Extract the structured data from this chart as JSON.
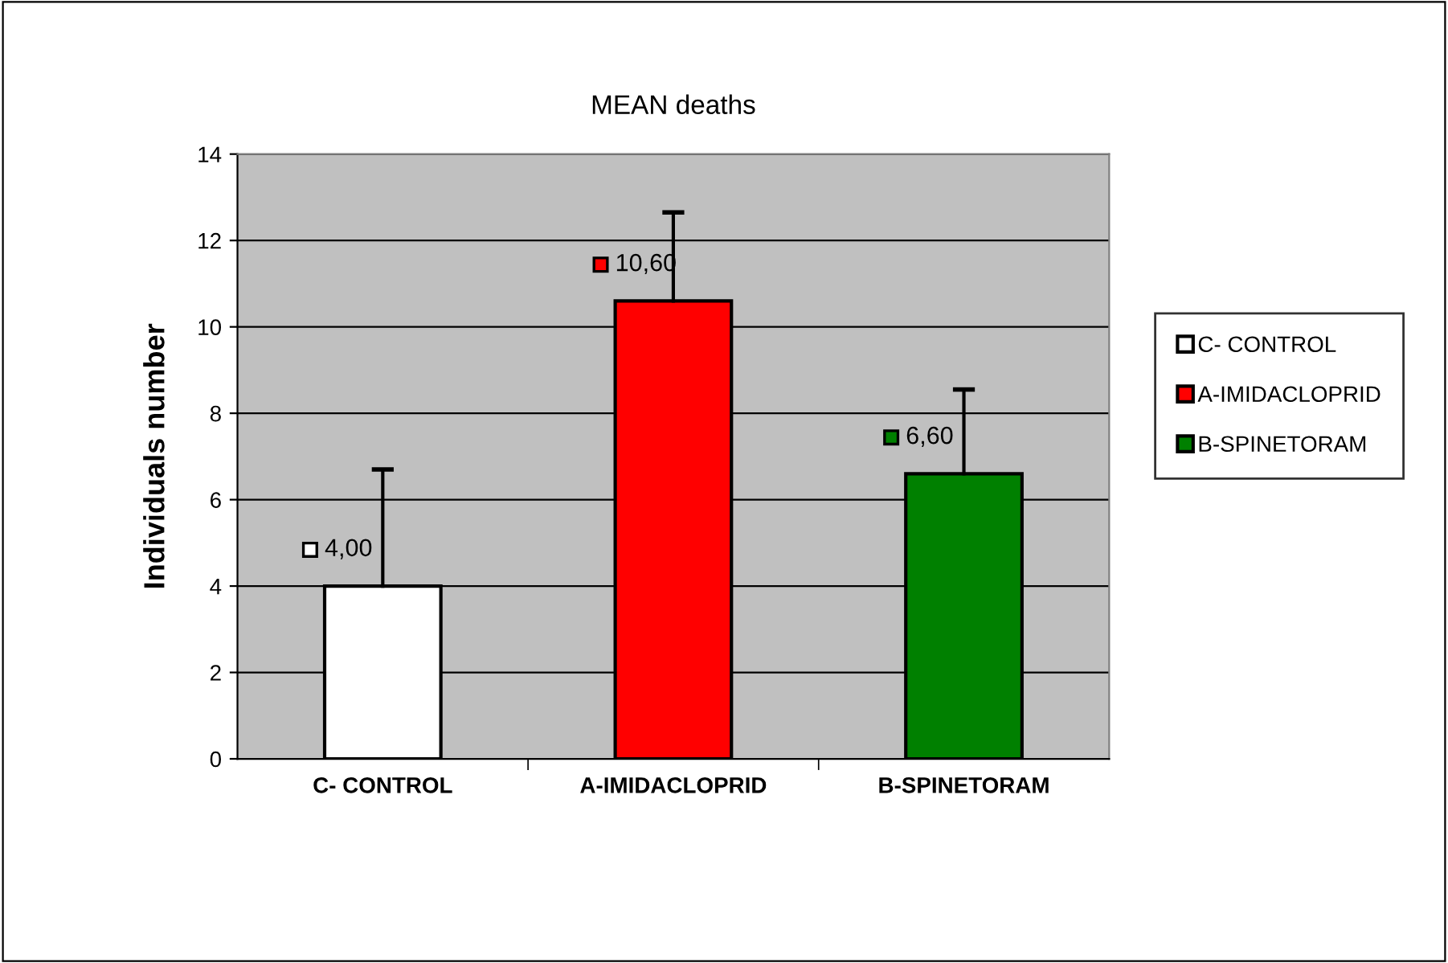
{
  "chart_data": {
    "type": "bar",
    "title": "MEAN deaths",
    "ylabel": "Individuals number",
    "categories": [
      "C- CONTROL",
      "A-IMIDACLOPRID",
      "B-SPINETORAM"
    ],
    "series": [
      {
        "name": "C- CONTROL",
        "color": "#ffffff",
        "values": [
          4.0,
          null,
          null
        ],
        "errors": [
          [
            4.0,
            6.7
          ],
          null,
          null
        ],
        "value_labels": [
          "4,00",
          null,
          null
        ]
      },
      {
        "name": "A-IMIDACLOPRID",
        "color": "#ff0000",
        "values": [
          null,
          10.6,
          null
        ],
        "errors": [
          null,
          [
            10.6,
            12.65
          ],
          null
        ],
        "value_labels": [
          null,
          "10,60",
          null
        ]
      },
      {
        "name": "B-SPINETORAM",
        "color": "#008000",
        "values": [
          null,
          null,
          6.6
        ],
        "errors": [
          null,
          null,
          [
            6.6,
            8.55
          ]
        ],
        "value_labels": [
          null,
          null,
          "6,60"
        ]
      }
    ],
    "ylim": [
      0,
      14
    ],
    "yticks": [
      0,
      2,
      4,
      6,
      8,
      10,
      12,
      14
    ],
    "grid": "y",
    "legend": "right"
  }
}
